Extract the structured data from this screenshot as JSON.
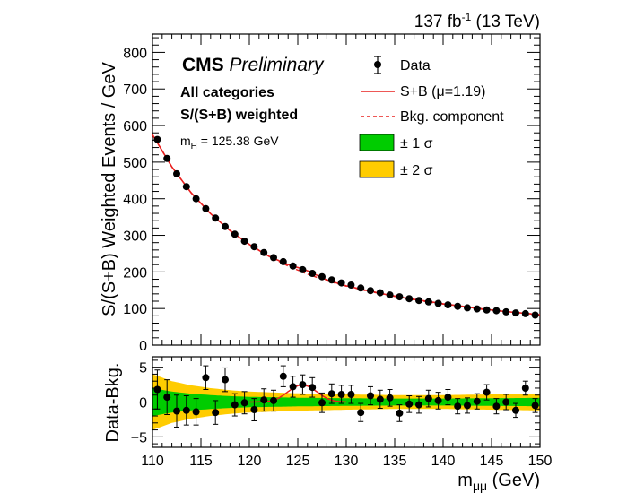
{
  "lumi": {
    "base": "137 fb",
    "sup": "-1",
    "energy": " (13 TeV)"
  },
  "cms": {
    "label": "CMS",
    "tag": "Preliminary"
  },
  "categories_label": "All categories",
  "weighting_label": "S/(S+B) weighted",
  "mass_label": {
    "m": "m",
    "sub": "H",
    "value": " = 125.38 GeV"
  },
  "legend": {
    "data": "Data",
    "sb_pre": "S+B (",
    "mu": "μ",
    "sb_post": "=1.19)",
    "bkg": "Bkg. component",
    "one_sigma": "± 1 σ",
    "two_sigma": "± 2 σ"
  },
  "colors": {
    "fit": "#e8201f",
    "one_sigma": "#00cc00",
    "two_sigma": "#ffcc00",
    "data": "#000000"
  },
  "chart_data": [
    {
      "type": "scatter",
      "panel": "main",
      "ylabel": "S/(S+B) Weighted Events / GeV",
      "xlim": [
        110,
        150
      ],
      "ylim": [
        0,
        850
      ],
      "yticks": [
        "0",
        "100",
        "200",
        "300",
        "400",
        "500",
        "600",
        "700",
        "800"
      ],
      "grid": false,
      "legend_position": "top-right",
      "series": [
        {
          "name": "Data",
          "x": [
            110.5,
            111.5,
            112.5,
            113.5,
            114.5,
            115.5,
            116.5,
            117.5,
            118.5,
            119.5,
            120.5,
            121.5,
            122.5,
            123.5,
            124.5,
            125.5,
            126.5,
            127.5,
            128.5,
            129.5,
            130.5,
            131.5,
            132.5,
            133.5,
            134.5,
            135.5,
            136.5,
            137.5,
            138.5,
            139.5,
            140.5,
            141.5,
            142.5,
            143.5,
            144.5,
            145.5,
            146.5,
            147.5,
            148.5,
            149.5
          ],
          "y": [
            562,
            510,
            468,
            433,
            400,
            373,
            347,
            324,
            303,
            284,
            269,
            253,
            239,
            228,
            216,
            206,
            196,
            187,
            178,
            170,
            164,
            156,
            149,
            143,
            137,
            132,
            127,
            122,
            118,
            114,
            110,
            106,
            102,
            99,
            96,
            94,
            91,
            88,
            86,
            82
          ]
        },
        {
          "name": "S+B (μ=1.19)",
          "x": [
            110,
            112,
            114,
            116,
            118,
            120,
            122,
            124,
            125.38,
            126,
            128,
            130,
            132,
            134,
            136,
            138,
            140,
            142,
            144,
            146,
            148,
            150
          ],
          "y": [
            575,
            487,
            416,
            359,
            313,
            275,
            243,
            220,
            209,
            203,
            178,
            162,
            150,
            139,
            129,
            121,
            113,
            106,
            99,
            93,
            88,
            83
          ]
        },
        {
          "name": "Bkg. component",
          "x": [
            110,
            112,
            114,
            116,
            118,
            120,
            122,
            124,
            126,
            128,
            130,
            132,
            134,
            136,
            138,
            140,
            142,
            144,
            146,
            148,
            150
          ],
          "y": [
            575,
            487,
            416,
            359,
            313,
            275,
            243,
            216,
            194,
            176,
            161,
            149,
            138,
            128,
            120,
            112,
            105,
            98,
            93,
            88,
            83
          ]
        }
      ]
    },
    {
      "type": "scatter",
      "panel": "ratio",
      "xlabel_m": "m",
      "xlabel_sub": "μμ",
      "xlabel_unit": " (GeV)",
      "ylabel": "Data-Bkg.",
      "xlim": [
        110,
        150
      ],
      "ylim": [
        -6.5,
        6.5
      ],
      "xticks": [
        "110",
        "115",
        "120",
        "125",
        "130",
        "135",
        "140",
        "145",
        "150"
      ],
      "yticks": [
        "−5",
        "0",
        "5"
      ],
      "grid": false,
      "series": [
        {
          "name": "Data",
          "x": [
            110.5,
            111.5,
            112.5,
            113.5,
            114.5,
            115.5,
            116.5,
            117.5,
            118.5,
            119.5,
            120.5,
            121.5,
            122.5,
            123.5,
            124.5,
            125.5,
            126.5,
            127.5,
            128.5,
            129.5,
            130.5,
            131.5,
            132.5,
            133.5,
            134.5,
            135.5,
            136.5,
            137.5,
            138.5,
            139.5,
            140.5,
            141.5,
            142.5,
            143.5,
            144.5,
            145.5,
            146.5,
            147.5,
            148.5,
            149.5
          ],
          "y": [
            1.8,
            0.7,
            -1.3,
            -1.2,
            -1.4,
            3.5,
            -1.5,
            3.2,
            -0.4,
            -0.1,
            -1.1,
            0.3,
            0.2,
            3.7,
            2.2,
            2.5,
            2.1,
            -0.1,
            1.2,
            1.1,
            1.1,
            -1.5,
            0.9,
            0.4,
            0.6,
            -1.6,
            -0.3,
            -0.4,
            0.5,
            0.2,
            0.7,
            -0.6,
            -0.5,
            0.1,
            1.4,
            -0.6,
            0.0,
            -1.2,
            2.0,
            -0.5
          ],
          "yerr": [
            2.8,
            2.5,
            2.3,
            2.1,
            1.9,
            1.7,
            1.7,
            1.7,
            1.6,
            1.6,
            1.6,
            1.6,
            1.5,
            1.5,
            1.5,
            1.4,
            1.4,
            1.4,
            1.4,
            1.3,
            1.3,
            1.3,
            1.3,
            1.3,
            1.2,
            1.2,
            1.2,
            1.2,
            1.2,
            1.2,
            1.1,
            1.1,
            1.1,
            1.1,
            1.1,
            1.1,
            1.1,
            1.0,
            1.0,
            1.0
          ]
        },
        {
          "name": "Signal",
          "x": [
            120,
            121,
            122,
            122.5,
            123,
            123.5,
            124,
            124.5,
            125,
            125.38,
            126,
            126.5,
            127,
            127.5,
            128,
            128.5,
            129,
            130
          ],
          "y": [
            0,
            0.02,
            0.12,
            0.27,
            0.55,
            0.98,
            1.5,
            2.0,
            2.35,
            2.45,
            2.3,
            1.95,
            1.45,
            0.95,
            0.52,
            0.25,
            0.1,
            0
          ]
        },
        {
          "name": "± 1 σ",
          "x": [
            110,
            112,
            114,
            116,
            118,
            120,
            125,
            130,
            135,
            140,
            145,
            150
          ],
          "y": [
            2.0,
            1.5,
            1.2,
            1.0,
            0.85,
            0.75,
            0.62,
            0.55,
            0.5,
            0.5,
            0.55,
            0.6
          ]
        },
        {
          "name": "± 2 σ",
          "x": [
            110,
            112,
            114,
            116,
            118,
            120,
            125,
            130,
            135,
            140,
            145,
            150
          ],
          "y": [
            4.0,
            3.0,
            2.4,
            2.0,
            1.7,
            1.5,
            1.25,
            1.1,
            1.0,
            1.0,
            1.1,
            1.2
          ]
        }
      ]
    }
  ]
}
